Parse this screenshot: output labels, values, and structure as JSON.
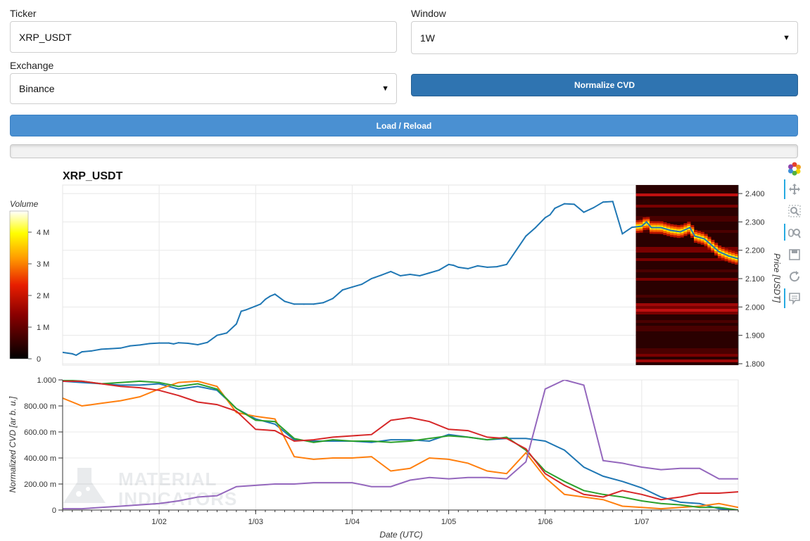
{
  "form": {
    "ticker_label": "Ticker",
    "ticker_value": "XRP_USDT",
    "window_label": "Window",
    "window_value": "1W",
    "exchange_label": "Exchange",
    "exchange_value": "Binance",
    "normalize_label": "Normalize CVD",
    "load_label": "Load / Reload",
    "progress": 0
  },
  "toolbar": {
    "icons": [
      "bokeh-logo-icon",
      "pan-icon",
      "box-zoom-icon",
      "wheel-zoom-icon",
      "save-icon",
      "reset-icon",
      "hover-icon"
    ]
  },
  "watermark": {
    "line1": "MATERIAL",
    "line2": "INDICATORS"
  },
  "colors": {
    "price": "#1f77b4",
    "s_blue": "#1f77b4",
    "s_orange": "#ff7f0e",
    "s_green": "#2ca02c",
    "s_red": "#d62728",
    "s_purple": "#9467bd"
  },
  "chart_data": [
    {
      "type": "line",
      "title": "XRP_USDT",
      "ylabel": "Price [USDT]",
      "colorbar_title": "Volume",
      "colorbar_ticks": [
        "0",
        "1 M",
        "2 M",
        "3 M",
        "4 M"
      ],
      "heatmap_note": "order book volume heatmap over last section",
      "ylim": [
        1.795,
        2.43
      ],
      "xlim": [
        0,
        7
      ],
      "yticks": [
        "1.800",
        "1.900",
        "2.000",
        "2.100",
        "2.200",
        "2.300",
        "2.400"
      ],
      "series": [
        {
          "name": "",
          "x": [
            0,
            0.1,
            0.14,
            0.2,
            0.3,
            0.4,
            0.5,
            0.6,
            0.7,
            0.8,
            0.9,
            1.0,
            1.1,
            1.15,
            1.2,
            1.3,
            1.4,
            1.5,
            1.6,
            1.7,
            1.8,
            1.85,
            1.9,
            2.0,
            2.05,
            2.1,
            2.15,
            2.2,
            2.3,
            2.4,
            2.5,
            2.6,
            2.7,
            2.8,
            2.9,
            3.0,
            3.1,
            3.2,
            3.3,
            3.4,
            3.5,
            3.6,
            3.7,
            3.8,
            3.9,
            4.0,
            4.05,
            4.1,
            4.2,
            4.3,
            4.4,
            4.5,
            4.6,
            4.7,
            4.8,
            4.9,
            5.0,
            5.05,
            5.1,
            5.2,
            5.3,
            5.4,
            5.5,
            5.6,
            5.7,
            5.8,
            5.9,
            6.0,
            6.05,
            6.1,
            6.2,
            6.3,
            6.4,
            6.5,
            6.55,
            6.6,
            6.65,
            6.7,
            6.8,
            6.9,
            6.95,
            7.0
          ],
          "y": [
            1.84,
            1.835,
            1.83,
            1.842,
            1.845,
            1.851,
            1.853,
            1.855,
            1.863,
            1.866,
            1.871,
            1.873,
            1.873,
            1.87,
            1.874,
            1.872,
            1.867,
            1.875,
            1.9,
            1.908,
            1.94,
            1.985,
            1.99,
            2.003,
            2.01,
            2.027,
            2.038,
            2.045,
            2.02,
            2.01,
            2.01,
            2.01,
            2.015,
            2.03,
            2.06,
            2.07,
            2.08,
            2.1,
            2.112,
            2.125,
            2.11,
            2.115,
            2.11,
            2.12,
            2.13,
            2.15,
            2.147,
            2.14,
            2.135,
            2.145,
            2.14,
            2.142,
            2.15,
            2.2,
            2.25,
            2.28,
            2.315,
            2.325,
            2.348,
            2.364,
            2.362,
            2.334,
            2.35,
            2.37,
            2.372,
            2.258,
            2.281,
            2.285,
            2.3,
            2.28,
            2.28,
            2.27,
            2.265,
            2.28,
            2.25,
            2.245,
            2.24,
            2.225,
            2.195,
            2.18,
            2.175,
            2.17
          ]
        }
      ]
    },
    {
      "type": "line",
      "xlabel": "Date (UTC)",
      "ylabel": "Normalized CVD [ar b. u.]",
      "xticks": [
        "1/02",
        "1/03",
        "1/04",
        "1/05",
        "1/06",
        "1/07"
      ],
      "yticks": [
        "0",
        "200.00 m",
        "400.00 m",
        "600.00 m",
        "800.00 m",
        "1.000"
      ],
      "ylim": [
        0,
        1.0
      ],
      "xlim": [
        0,
        7
      ],
      "x": [
        0,
        0.2,
        0.4,
        0.6,
        0.8,
        1.0,
        1.2,
        1.4,
        1.6,
        1.8,
        2.0,
        2.2,
        2.4,
        2.6,
        2.8,
        3.0,
        3.2,
        3.4,
        3.6,
        3.8,
        4.0,
        4.2,
        4.4,
        4.6,
        4.8,
        5.0,
        5.2,
        5.4,
        5.6,
        5.8,
        6.0,
        6.2,
        6.4,
        6.6,
        6.8,
        7.0
      ],
      "series": [
        {
          "name": "",
          "values": [
            0.99,
            0.98,
            0.97,
            0.96,
            0.96,
            0.97,
            0.93,
            0.95,
            0.92,
            0.78,
            0.7,
            0.66,
            0.54,
            0.53,
            0.53,
            0.53,
            0.52,
            0.54,
            0.54,
            0.53,
            0.58,
            0.56,
            0.54,
            0.55,
            0.55,
            0.53,
            0.46,
            0.33,
            0.26,
            0.22,
            0.17,
            0.1,
            0.06,
            0.05,
            0.01,
            0.0
          ]
        },
        {
          "name": "",
          "values": [
            0.86,
            0.8,
            0.82,
            0.84,
            0.87,
            0.93,
            0.98,
            0.99,
            0.95,
            0.75,
            0.72,
            0.7,
            0.41,
            0.39,
            0.4,
            0.4,
            0.41,
            0.3,
            0.32,
            0.4,
            0.39,
            0.36,
            0.3,
            0.28,
            0.44,
            0.25,
            0.12,
            0.1,
            0.08,
            0.03,
            0.02,
            0.01,
            0.02,
            0.03,
            0.05,
            0.02
          ]
        },
        {
          "name": "",
          "values": [
            1.0,
            0.99,
            0.97,
            0.98,
            0.99,
            0.98,
            0.95,
            0.97,
            0.93,
            0.78,
            0.69,
            0.68,
            0.55,
            0.52,
            0.54,
            0.53,
            0.53,
            0.52,
            0.53,
            0.55,
            0.57,
            0.56,
            0.54,
            0.56,
            0.46,
            0.3,
            0.22,
            0.15,
            0.12,
            0.1,
            0.07,
            0.05,
            0.04,
            0.02,
            0.02,
            0.0
          ]
        },
        {
          "name": "",
          "values": [
            0.99,
            0.99,
            0.97,
            0.95,
            0.94,
            0.92,
            0.88,
            0.83,
            0.81,
            0.76,
            0.62,
            0.61,
            0.53,
            0.54,
            0.56,
            0.57,
            0.58,
            0.69,
            0.71,
            0.68,
            0.62,
            0.61,
            0.56,
            0.55,
            0.47,
            0.28,
            0.19,
            0.12,
            0.1,
            0.15,
            0.12,
            0.08,
            0.1,
            0.13,
            0.13,
            0.14
          ]
        },
        {
          "name": "",
          "values": [
            0.01,
            0.01,
            0.02,
            0.03,
            0.04,
            0.05,
            0.07,
            0.1,
            0.11,
            0.18,
            0.19,
            0.2,
            0.2,
            0.21,
            0.21,
            0.21,
            0.18,
            0.18,
            0.23,
            0.25,
            0.24,
            0.25,
            0.25,
            0.24,
            0.37,
            0.93,
            1.0,
            0.96,
            0.38,
            0.36,
            0.33,
            0.31,
            0.32,
            0.32,
            0.24,
            0.24
          ]
        }
      ]
    }
  ]
}
